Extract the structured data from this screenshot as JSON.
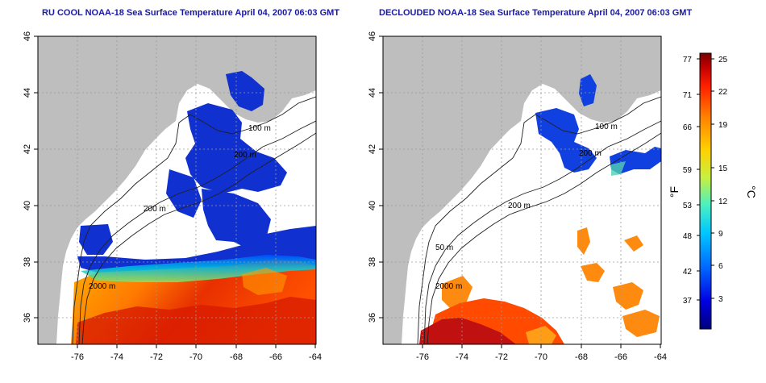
{
  "left_panel": {
    "title": "RU COOL NOAA-18 Sea Surface Temperature April 04, 2007 06:03 GMT",
    "contour_labels": [
      "100 m",
      "200 m",
      "200 m",
      "2000 m"
    ]
  },
  "right_panel": {
    "title": "DECLOUDED NOAA-18 Sea Surface Temperature April 04, 2007 06:03 GMT",
    "contour_labels": [
      "100 m",
      "200 m",
      "200 m",
      "50 m",
      "2000 m"
    ]
  },
  "axes": {
    "x_ticks": [
      "-76",
      "-74",
      "-72",
      "-70",
      "-68",
      "-66",
      "-64"
    ],
    "y_ticks": [
      "46",
      "44",
      "42",
      "40",
      "38",
      "36"
    ],
    "lon_range": [
      -77,
      -63
    ],
    "lat_range": [
      35,
      46
    ]
  },
  "colorbar": {
    "fahrenheit_label": "°F",
    "celsius_label": "°C",
    "fahrenheit_ticks": [
      "77",
      "71",
      "66",
      "59",
      "53",
      "48",
      "42",
      "37"
    ],
    "celsius_ticks": [
      "25",
      "22",
      "19",
      "15",
      "12",
      "9",
      "6",
      "3"
    ],
    "colors": [
      "#00007a",
      "#0000e0",
      "#0066ff",
      "#00c8ff",
      "#4cf0c0",
      "#c8f040",
      "#ffd000",
      "#ff8000",
      "#ff2000",
      "#c00000",
      "#7a0000"
    ]
  },
  "colors": {
    "land": "#bebebe",
    "ocean_clear": "#ffffff",
    "cold_water": "#1030d0",
    "title_text": "#1a1aa0"
  }
}
